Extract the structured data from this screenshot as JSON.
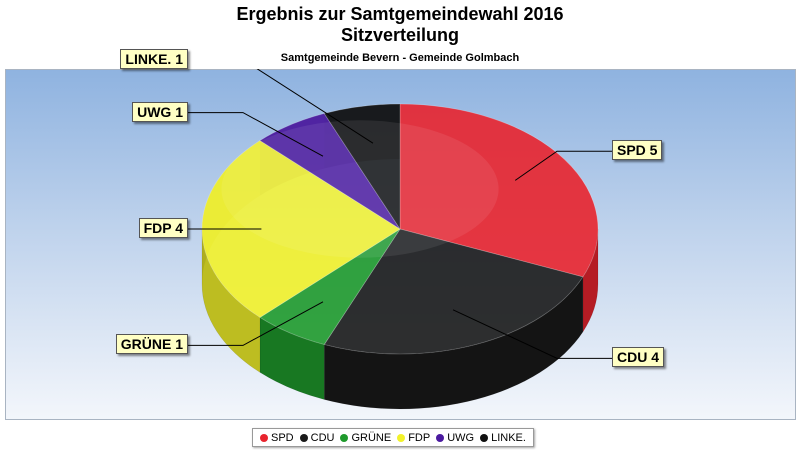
{
  "chart_data": {
    "type": "pie",
    "title": "Ergebnis zur Samtgemeindewahl 2016",
    "title2": "Sitzverteilung",
    "subtitle": "Samtgemeinde Bevern - Gemeinde Golmbach",
    "slices": [
      {
        "name": "SPD",
        "value": 5,
        "color": "#e8242e",
        "label": "SPD 5"
      },
      {
        "name": "CDU",
        "value": 4,
        "color": "#1a1a1a",
        "label": "CDU 4"
      },
      {
        "name": "GRÜNE",
        "value": 1,
        "color": "#1f9a2c",
        "label": "GRÜNE 1"
      },
      {
        "name": "FDP",
        "value": 4,
        "color": "#f2f22a",
        "label": "FDP 4"
      },
      {
        "name": "UWG",
        "value": 1,
        "color": "#4b1aa0",
        "label": "UWG 1"
      },
      {
        "name": "LINKE.",
        "value": 1,
        "color": "#101010",
        "label": "LINKE. 1"
      }
    ],
    "legend": [
      "SPD",
      "CDU",
      "GRÜNE",
      "FDP",
      "UWG",
      "LINKE."
    ],
    "legend_position": "bottom"
  }
}
